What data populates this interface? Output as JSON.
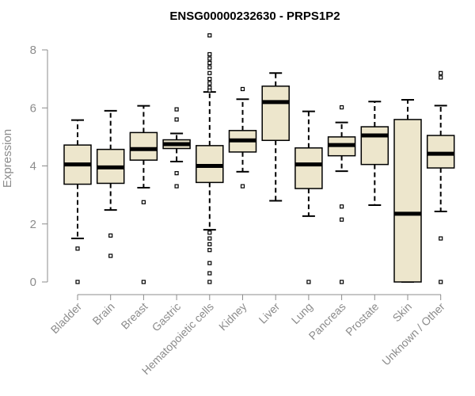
{
  "chart_data": {
    "type": "boxplot",
    "title": "ENSG00000232630 - PRPS1P2",
    "xlabel": "",
    "ylabel": "Expression",
    "ylim": [
      0,
      8.5
    ],
    "yticks": [
      0,
      2,
      4,
      6,
      8
    ],
    "colors": {
      "box_fill": "#ede6cc",
      "box_stroke": "#000000",
      "median": "#000000",
      "axis": "#8c8c8c"
    },
    "categories": [
      "Bladder",
      "Brain",
      "Breast",
      "Gastric",
      "Hematopoietic cells",
      "Kidney",
      "Liver",
      "Lung",
      "Pancreas",
      "Prostate",
      "Skin",
      "Unknown / Other"
    ],
    "boxes": [
      {
        "name": "Bladder",
        "q1": 3.37,
        "median": 4.05,
        "q3": 4.72,
        "whisker_low": 1.5,
        "whisker_high": 5.58,
        "outliers": [
          1.15,
          0.0
        ]
      },
      {
        "name": "Brain",
        "q1": 3.4,
        "median": 3.95,
        "q3": 4.57,
        "whisker_low": 2.48,
        "whisker_high": 5.9,
        "outliers": [
          1.6,
          0.9
        ]
      },
      {
        "name": "Breast",
        "q1": 4.2,
        "median": 4.58,
        "q3": 5.15,
        "whisker_low": 3.25,
        "whisker_high": 6.07,
        "outliers": [
          2.75,
          0.0
        ]
      },
      {
        "name": "Gastric",
        "q1": 4.6,
        "median": 4.75,
        "q3": 4.9,
        "whisker_low": 4.15,
        "whisker_high": 5.12,
        "outliers": [
          5.95,
          5.6,
          3.75,
          3.3
        ]
      },
      {
        "name": "Hematopoietic cells",
        "q1": 3.43,
        "median": 4.0,
        "q3": 4.7,
        "whisker_low": 1.8,
        "whisker_high": 6.55,
        "outliers": [
          8.5,
          7.85,
          7.7,
          7.55,
          7.4,
          7.2,
          7.0,
          6.85,
          6.7,
          6.6,
          1.7,
          1.5,
          1.3,
          1.1,
          0.65,
          0.3,
          0.0
        ]
      },
      {
        "name": "Kidney",
        "q1": 4.48,
        "median": 4.88,
        "q3": 5.22,
        "whisker_low": 3.8,
        "whisker_high": 6.3,
        "outliers": [
          6.65,
          3.3
        ]
      },
      {
        "name": "Liver",
        "q1": 4.88,
        "median": 6.2,
        "q3": 6.75,
        "whisker_low": 2.8,
        "whisker_high": 7.2,
        "outliers": []
      },
      {
        "name": "Lung",
        "q1": 3.22,
        "median": 4.05,
        "q3": 4.62,
        "whisker_low": 2.27,
        "whisker_high": 5.88,
        "outliers": [
          0.0
        ]
      },
      {
        "name": "Pancreas",
        "q1": 4.35,
        "median": 4.72,
        "q3": 5.0,
        "whisker_low": 3.82,
        "whisker_high": 5.5,
        "outliers": [
          6.02,
          2.6,
          2.15,
          0.0
        ]
      },
      {
        "name": "Prostate",
        "q1": 4.05,
        "median": 5.05,
        "q3": 5.35,
        "whisker_low": 2.65,
        "whisker_high": 6.22,
        "outliers": []
      },
      {
        "name": "Skin",
        "q1": 0.0,
        "median": 2.35,
        "q3": 5.6,
        "whisker_low": 0.0,
        "whisker_high": 6.28,
        "outliers": []
      },
      {
        "name": "Unknown / Other",
        "q1": 3.93,
        "median": 4.42,
        "q3": 5.05,
        "whisker_low": 2.43,
        "whisker_high": 6.08,
        "outliers": [
          7.2,
          7.05,
          1.5,
          0.0
        ]
      }
    ]
  }
}
